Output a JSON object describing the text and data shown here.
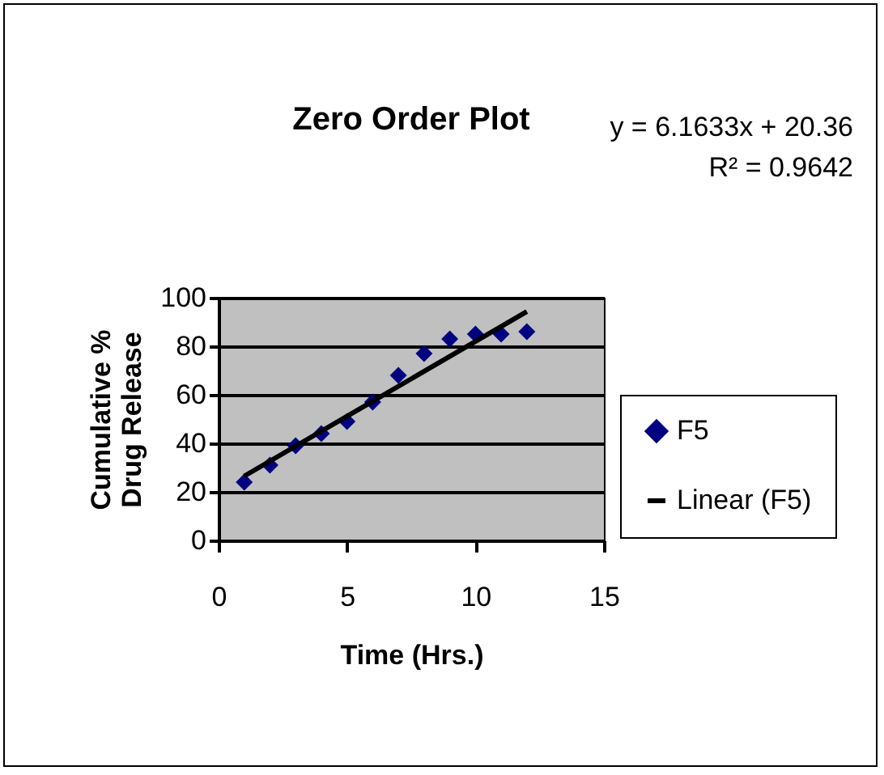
{
  "chart_data": {
    "type": "scatter",
    "title": "Zero Order Plot",
    "xlabel": "Time (Hrs.)",
    "ylabel": "Cumulative %\nDrug Release",
    "x": [
      1,
      2,
      3,
      4,
      5,
      6,
      7,
      8,
      9,
      10,
      11,
      12
    ],
    "series": [
      {
        "name": "F5",
        "color": "#000080",
        "marker": "diamond",
        "values": [
          24,
          31,
          39,
          44,
          49,
          57,
          68,
          77,
          83,
          85,
          85,
          86
        ]
      },
      {
        "name": "Linear (F5)",
        "type": "line",
        "color": "#000000",
        "x": [
          1,
          12
        ],
        "values": [
          26.5,
          94.3
        ]
      }
    ],
    "xlim": [
      0,
      15
    ],
    "xticks": [
      0,
      5,
      10,
      15
    ],
    "ylim": [
      0,
      100
    ],
    "yticks": [
      0,
      20,
      40,
      60,
      80,
      100
    ],
    "grid": "y",
    "legend": "right",
    "annotations": [
      "y = 6.1633x + 20.36",
      "R² = 0.9642"
    ]
  }
}
